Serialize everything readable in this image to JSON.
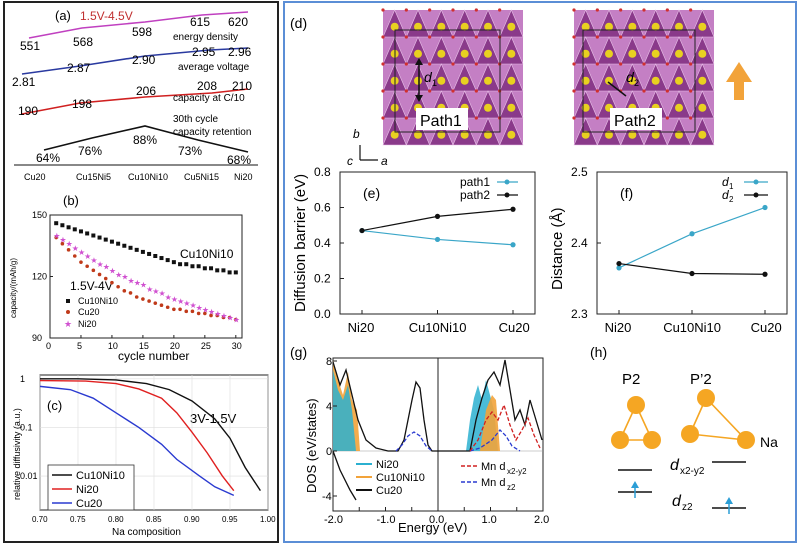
{
  "panel_labels": {
    "a": "(a)",
    "b": "(b)",
    "c": "(c)",
    "d": "(d)",
    "e": "(e)",
    "f": "(f)",
    "g": "(g)",
    "h": "(h)"
  },
  "colors": {
    "left_border": "#222222",
    "right_border": "#5b8ed6",
    "path1": "#3aa6c8",
    "path2": "#111111",
    "arrow": "#f2a33a",
    "na": "#f5a623",
    "crystal": "#b86bb8",
    "ion": "#e0c020"
  },
  "panel_a": {
    "range_label": "1.5V-4.5V",
    "categories": [
      "Cu20",
      "Cu15Ni5",
      "Cu10Ni10",
      "Cu5Ni15",
      "Ni20"
    ],
    "rows": [
      {
        "name": "energy density",
        "values": [
          "551",
          "568",
          "598",
          "615",
          "620"
        ],
        "color": "#c040c0"
      },
      {
        "name": "average voltage",
        "values": [
          "2.81",
          "2.87",
          "2.90",
          "2.95",
          "2.96"
        ],
        "color": "#2a3aa0"
      },
      {
        "name": "capacity at C/10",
        "values": [
          "190",
          "198",
          "206",
          "208",
          "210"
        ],
        "color": "#d02020"
      },
      {
        "name": "30th cycle capacity retention",
        "values": [
          "64%",
          "76%",
          "88%",
          "73%",
          "68%"
        ],
        "color": "#111111"
      }
    ]
  },
  "chart_data": [
    {
      "id": "b",
      "type": "scatter",
      "xlabel": "cycle number",
      "ylabel": "capacity/(mAh/g)",
      "xlim": [
        0,
        31
      ],
      "ylim": [
        90,
        150
      ],
      "xticks": [
        "0",
        "5",
        "10",
        "15",
        "20",
        "25",
        "30"
      ],
      "yticks": [
        "90",
        "120",
        "150"
      ],
      "annotation": "Cu10Ni10",
      "range_label": "1.5V-4V",
      "legend": [
        "Cu10Ni10",
        "Cu20",
        "Ni20"
      ],
      "series": [
        {
          "name": "Cu10Ni10",
          "color": "#111111",
          "x": [
            1,
            2,
            3,
            4,
            5,
            6,
            7,
            8,
            9,
            10,
            11,
            12,
            13,
            14,
            15,
            16,
            17,
            18,
            19,
            20,
            21,
            22,
            23,
            24,
            25,
            26,
            27,
            28,
            29,
            30
          ],
          "y": [
            146,
            145,
            144,
            143,
            142,
            141,
            140,
            139,
            138,
            137,
            136,
            135,
            134,
            133,
            132,
            131,
            130,
            129,
            128,
            127,
            126,
            126,
            125,
            125,
            124,
            124,
            123,
            123,
            122,
            122
          ]
        },
        {
          "name": "Cu20",
          "color": "#c03a1a",
          "x": [
            1,
            2,
            3,
            4,
            5,
            6,
            7,
            8,
            9,
            10,
            11,
            12,
            13,
            14,
            15,
            16,
            17,
            18,
            19,
            20,
            21,
            22,
            23,
            24,
            25,
            26,
            27,
            28,
            29,
            30
          ],
          "y": [
            139,
            136,
            133,
            130,
            127,
            125,
            123,
            121,
            119,
            117,
            115,
            113,
            112,
            110,
            109,
            108,
            107,
            106,
            105,
            104,
            104,
            103,
            103,
            102,
            102,
            101,
            101,
            100,
            100,
            99
          ]
        },
        {
          "name": "Ni20",
          "color": "#d050d0",
          "x": [
            1,
            2,
            3,
            4,
            5,
            6,
            7,
            8,
            9,
            10,
            11,
            12,
            13,
            14,
            15,
            16,
            17,
            18,
            19,
            20,
            21,
            22,
            23,
            24,
            25,
            26,
            27,
            28,
            29,
            30
          ],
          "y": [
            140,
            138,
            136,
            134,
            132,
            130,
            128,
            126,
            125,
            123,
            121,
            120,
            118,
            117,
            116,
            114,
            113,
            112,
            110,
            109,
            108,
            107,
            106,
            105,
            104,
            103,
            102,
            101,
            100,
            99
          ]
        }
      ]
    },
    {
      "id": "c",
      "type": "line",
      "xlabel": "Na composition",
      "ylabel": "relative diffusivity (a.u.)",
      "xlim": [
        0.7,
        1.0
      ],
      "ylim": [
        0.002,
        1.2
      ],
      "yscale": "log",
      "xticks": [
        "0.70",
        "0.75",
        "0.80",
        "0.85",
        "0.90",
        "0.95",
        "1.00"
      ],
      "yticks": [
        "0.01",
        "0.1",
        "1"
      ],
      "annotation": "3V-1.5V",
      "series": [
        {
          "name": "Cu10Ni10",
          "color": "#111111",
          "x": [
            0.7,
            0.75,
            0.8,
            0.84,
            0.87,
            0.9,
            0.93,
            0.95,
            0.97,
            0.99
          ],
          "y": [
            1.0,
            1.0,
            0.95,
            0.8,
            0.6,
            0.35,
            0.15,
            0.06,
            0.015,
            0.005
          ]
        },
        {
          "name": "Ni20",
          "color": "#e02020",
          "x": [
            0.7,
            0.76,
            0.8,
            0.83,
            0.86,
            0.88,
            0.9,
            0.92,
            0.94,
            0.955
          ],
          "y": [
            0.92,
            0.9,
            0.8,
            0.62,
            0.4,
            0.2,
            0.08,
            0.03,
            0.01,
            0.005
          ]
        },
        {
          "name": "Cu20",
          "color": "#2a3ad0",
          "x": [
            0.7,
            0.74,
            0.77,
            0.8,
            0.83,
            0.86,
            0.88,
            0.91,
            0.93,
            0.955
          ],
          "y": [
            0.7,
            0.6,
            0.4,
            0.2,
            0.1,
            0.045,
            0.022,
            0.01,
            0.006,
            0.004
          ]
        }
      ]
    },
    {
      "id": "e",
      "type": "line",
      "title": "",
      "xlabel": "",
      "ylabel": "Diffusion barrier (eV)",
      "categories": [
        "Ni20",
        "Cu10Ni10",
        "Cu20"
      ],
      "ylim": [
        0.0,
        0.8
      ],
      "yticks": [
        "0.0",
        "0.2",
        "0.4",
        "0.6",
        "0.8"
      ],
      "series": [
        {
          "name": "path1",
          "color": "#3aa6c8",
          "values": [
            0.47,
            0.42,
            0.39
          ]
        },
        {
          "name": "path2",
          "color": "#111111",
          "values": [
            0.47,
            0.55,
            0.59
          ]
        }
      ]
    },
    {
      "id": "f",
      "type": "line",
      "xlabel": "",
      "ylabel": "Distance (Å)",
      "categories": [
        "Ni20",
        "Cu10Ni10",
        "Cu20"
      ],
      "ylim": [
        2.3,
        2.5
      ],
      "yticks": [
        "2.3",
        "2.4",
        "2.5"
      ],
      "series": [
        {
          "name": "d1",
          "color": "#3aa6c8",
          "values": [
            2.365,
            2.413,
            2.45
          ]
        },
        {
          "name": "d2",
          "color": "#111111",
          "values": [
            2.371,
            2.357,
            2.356
          ]
        }
      ]
    }
  ],
  "panel_g": {
    "xlabel": "Energy (eV)",
    "ylabel": "DOS (eV/states)",
    "xticks": [
      "-2.0",
      "-1.5",
      "-1.0",
      "-0.5",
      "0.0",
      "0.5",
      "1.0",
      "1.5",
      "2.0"
    ],
    "yticks": [
      "-4",
      "0",
      "4",
      "8"
    ],
    "legend_left": [
      "Ni20",
      "Cu10Ni10",
      "Cu20"
    ],
    "legend_right": [
      "Mn d",
      "Mn d"
    ],
    "legend_right_sub": [
      "x2-y2",
      "z2"
    ]
  },
  "panel_d": {
    "path1": "Path1",
    "path2": "Path2",
    "d1": "d",
    "d2": "d",
    "sub1": "1",
    "sub2": "2",
    "axis_b": "b",
    "axis_c": "c",
    "axis_a": "a"
  },
  "panel_h": {
    "p2": "P2",
    "p2prime": "P’2",
    "na": "Na",
    "dx": "d",
    "dx_sub": "x2-y2",
    "dz": "d",
    "dz_sub": "z2"
  }
}
